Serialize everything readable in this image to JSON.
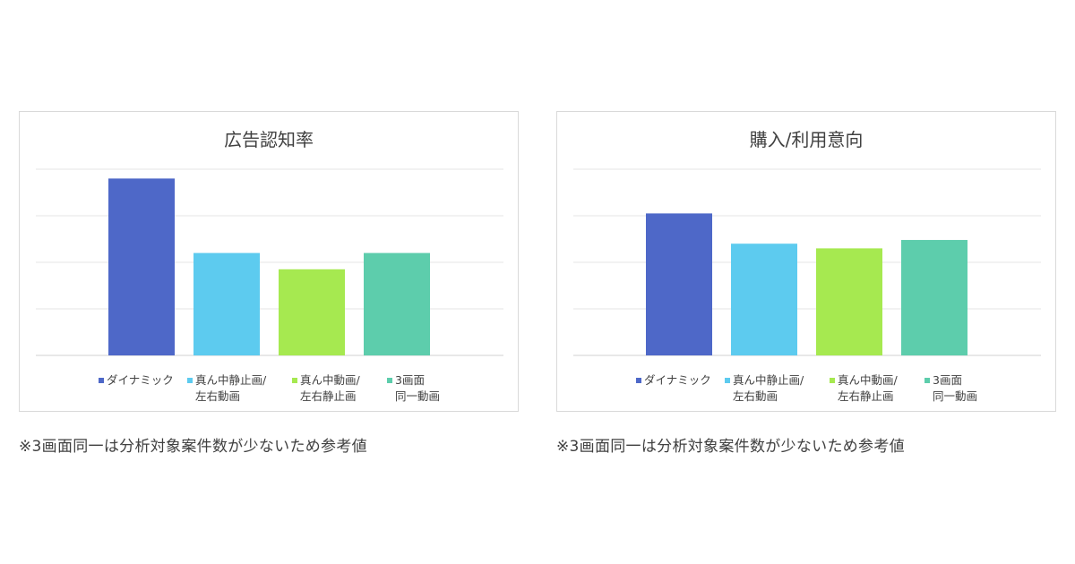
{
  "notes": {
    "left": "※3画面同一は分析対象案件数が少ないため参考値",
    "right": "※3画面同一は分析対象案件数が少ないため参考値"
  },
  "chart_data": [
    {
      "type": "bar",
      "title": "広告認知率",
      "categories": [
        "ダイナミック",
        "真ん中静止画/左右動画",
        "真ん中動画/左右静止画",
        "3画面同一動画"
      ],
      "legend": [
        {
          "label_lines": [
            "ダイナミック"
          ],
          "color": "#4e68c8"
        },
        {
          "label_lines": [
            "真ん中静止画/",
            "左右動画"
          ],
          "color": "#5dcbef"
        },
        {
          "label_lines": [
            "真ん中動画/",
            "左右静止画"
          ],
          "color": "#a6e950"
        },
        {
          "label_lines": [
            "3画面",
            "同一動画"
          ],
          "color": "#5dcdac"
        }
      ],
      "values": [
        3.8,
        2.2,
        1.85,
        2.2
      ],
      "ylim": [
        0,
        4
      ],
      "grid": true,
      "legend_position": "bottom",
      "colors": [
        "#4e68c8",
        "#5dcbef",
        "#a6e950",
        "#5dcdac"
      ]
    },
    {
      "type": "bar",
      "title": "購入/利用意向",
      "categories": [
        "ダイナミック",
        "真ん中静止画/左右動画",
        "真ん中動画/左右静止画",
        "3画面同一動画"
      ],
      "legend": [
        {
          "label_lines": [
            "ダイナミック"
          ],
          "color": "#4e68c8"
        },
        {
          "label_lines": [
            "真ん中静止画/",
            "左右動画"
          ],
          "color": "#5dcbef"
        },
        {
          "label_lines": [
            "真ん中動画/",
            "左右静止画"
          ],
          "color": "#a6e950"
        },
        {
          "label_lines": [
            "3画面",
            "同一動画"
          ],
          "color": "#5dcdac"
        }
      ],
      "values": [
        3.05,
        2.4,
        2.3,
        2.48
      ],
      "ylim": [
        0,
        4
      ],
      "grid": true,
      "legend_position": "bottom",
      "colors": [
        "#4e68c8",
        "#5dcbef",
        "#a6e950",
        "#5dcdac"
      ]
    }
  ]
}
